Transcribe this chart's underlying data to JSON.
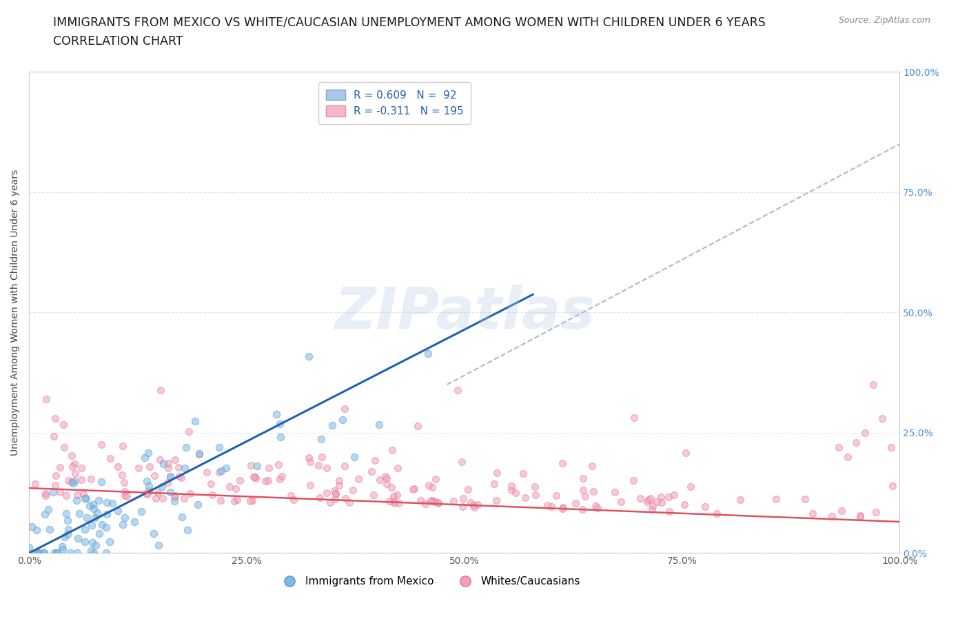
{
  "title_line1": "IMMIGRANTS FROM MEXICO VS WHITE/CAUCASIAN UNEMPLOYMENT AMONG WOMEN WITH CHILDREN UNDER 6 YEARS",
  "title_line2": "CORRELATION CHART",
  "source": "Source: ZipAtlas.com",
  "ylabel": "Unemployment Among Women with Children Under 6 years",
  "xlim": [
    0.0,
    1.0
  ],
  "ylim": [
    0.0,
    1.0
  ],
  "xtick_labels": [
    "0.0%",
    "25.0%",
    "50.0%",
    "75.0%",
    "100.0%"
  ],
  "xtick_vals": [
    0.0,
    0.25,
    0.5,
    0.75,
    1.0
  ],
  "ytick_labels": [
    "",
    "",
    "",
    "",
    ""
  ],
  "ytick_vals": [
    0.0,
    0.25,
    0.5,
    0.75,
    1.0
  ],
  "right_ytick_labels": [
    "0.0%",
    "25.0%",
    "50.0%",
    "75.0%",
    "100.0%"
  ],
  "legend_items": [
    {
      "label": "R = 0.609   N =  92",
      "facecolor": "#aac8e8",
      "edgecolor": "#7aafd4"
    },
    {
      "label": "R = -0.311   N = 195",
      "facecolor": "#f4b8c8",
      "edgecolor": "#e8909c"
    }
  ],
  "blue_scatter_color": "#7ab8e8",
  "blue_scatter_edge": "#5a98c8",
  "pink_scatter_color": "#f4a0b8",
  "pink_scatter_edge": "#e07090",
  "blue_line_color": "#2060b0",
  "pink_line_color": "#e05060",
  "dashed_line_color": "#b0b8c8",
  "grid_color": "#e0e4e8",
  "background_color": "#ffffff",
  "watermark": "ZIPatlas",
  "title_fontsize": 12.5,
  "subtitle_fontsize": 12.5,
  "legend_fontsize": 11,
  "axis_label_fontsize": 10,
  "blue_R": 0.609,
  "blue_N": 92,
  "pink_R": -0.311,
  "pink_N": 195,
  "blue_line_x0": 0.0,
  "blue_line_y0": 0.0,
  "blue_line_x1": 0.56,
  "blue_line_y1": 0.52,
  "pink_line_x0": 0.0,
  "pink_line_y0": 0.135,
  "pink_line_x1": 1.0,
  "pink_line_y1": 0.065,
  "dash_line_x0": 0.48,
  "dash_line_y0": 0.35,
  "dash_line_x1": 1.0,
  "dash_line_y1": 0.85
}
